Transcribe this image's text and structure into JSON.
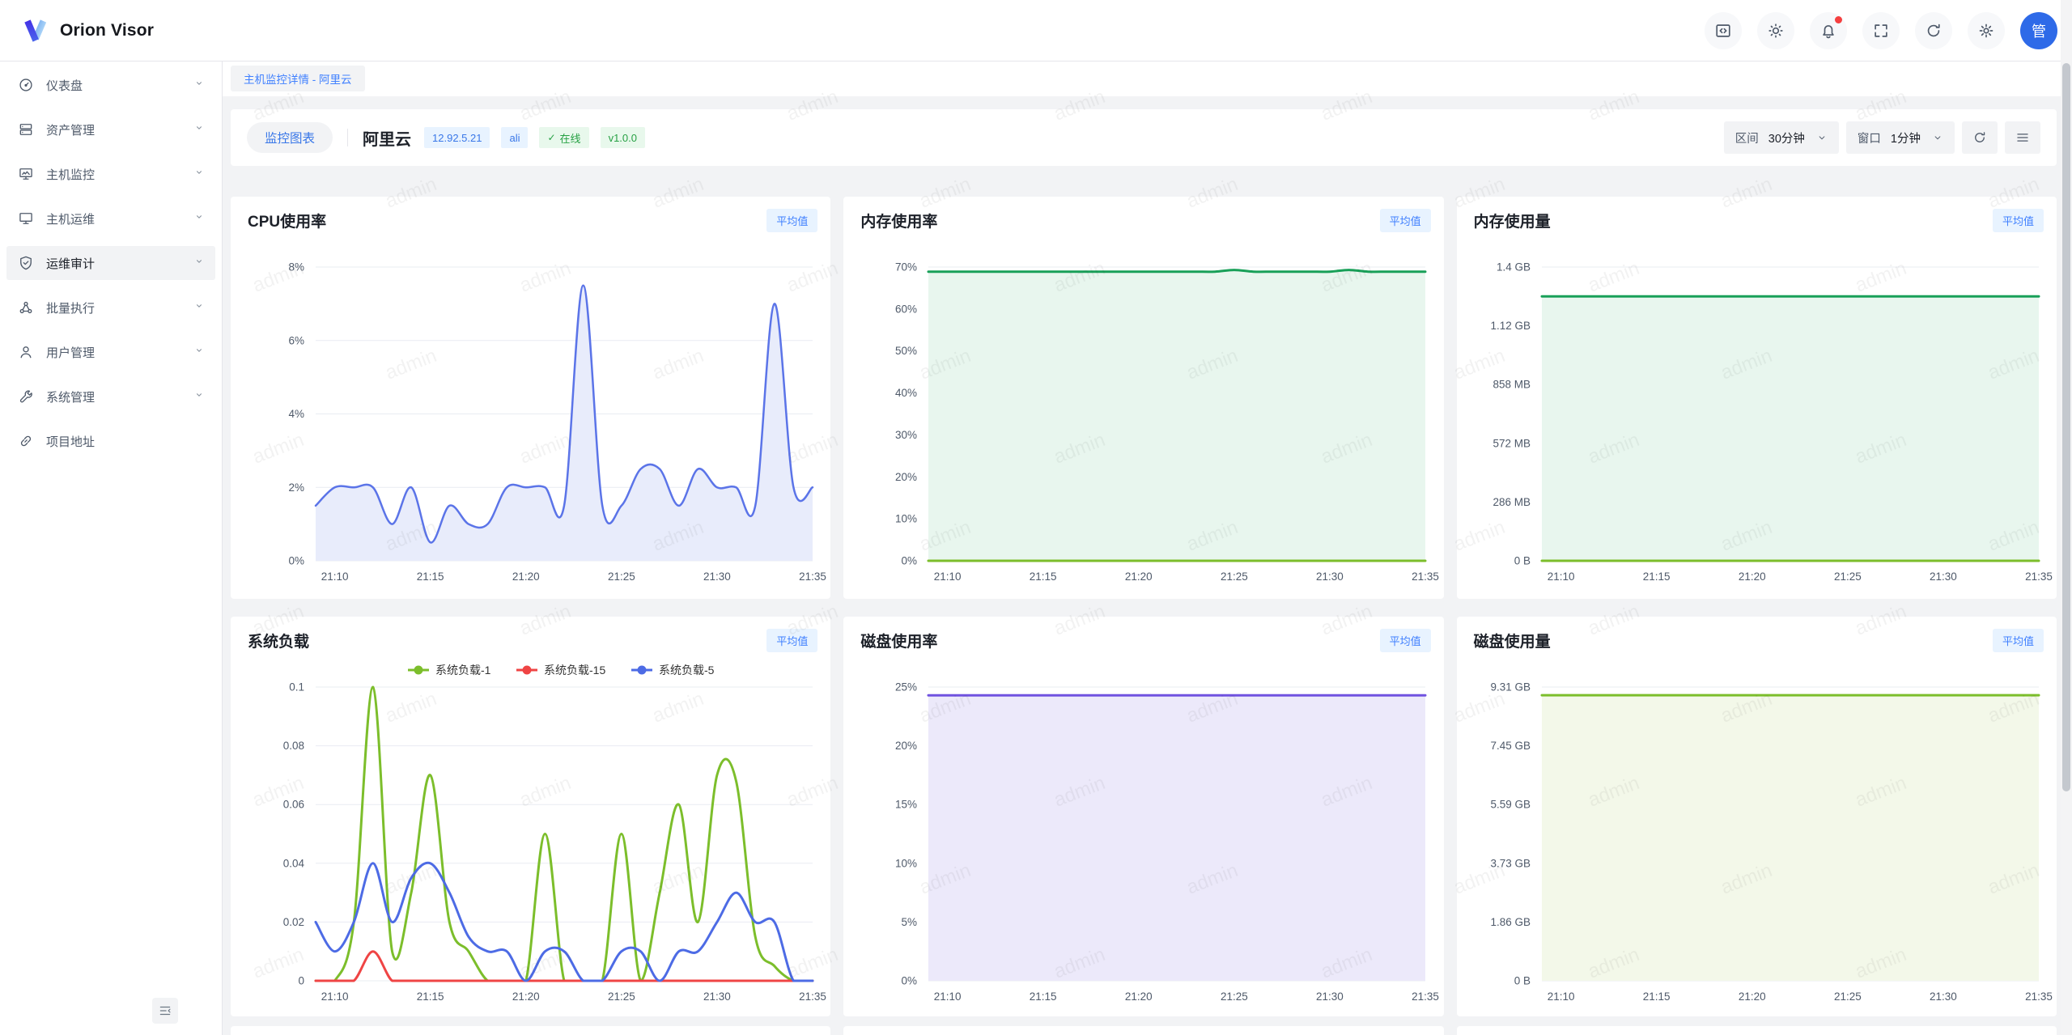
{
  "app": {
    "title": "Orion Visor"
  },
  "header": {
    "icons": [
      {
        "name": "code-icon"
      },
      {
        "name": "theme-sun-icon"
      },
      {
        "name": "notifications-bell-icon",
        "badge_dot": true
      },
      {
        "name": "fullscreen-icon"
      },
      {
        "name": "refresh-icon"
      },
      {
        "name": "settings-gear-icon"
      }
    ],
    "avatar_text": "管"
  },
  "tab_bar": {
    "tabs": [
      {
        "label": "主机监控详情 - 阿里云",
        "active": true
      }
    ]
  },
  "sidebar": {
    "items": [
      {
        "label": "仪表盘",
        "icon": "dashboard",
        "chevron": true,
        "active": false
      },
      {
        "label": "资产管理",
        "icon": "assets",
        "chevron": true,
        "active": false
      },
      {
        "label": "主机监控",
        "icon": "host-monitor",
        "chevron": true,
        "active": false
      },
      {
        "label": "主机运维",
        "icon": "host-ops",
        "chevron": true,
        "active": false
      },
      {
        "label": "运维审计",
        "icon": "audit",
        "chevron": true,
        "active": true
      },
      {
        "label": "批量执行",
        "icon": "batch",
        "chevron": true,
        "active": false
      },
      {
        "label": "用户管理",
        "icon": "users",
        "chevron": true,
        "active": false
      },
      {
        "label": "系统管理",
        "icon": "system",
        "chevron": true,
        "active": false
      },
      {
        "label": "项目地址",
        "icon": "link",
        "chevron": false,
        "active": false
      }
    ]
  },
  "toolbar": {
    "chart_tab_label": "监控图表",
    "host_name": "阿里云",
    "tags": [
      {
        "text": "12.92.5.21",
        "color": "blue",
        "check": false
      },
      {
        "text": "ali",
        "color": "blue",
        "check": false
      },
      {
        "text": "在线",
        "color": "green",
        "check": true
      },
      {
        "text": "v1.0.0",
        "color": "green",
        "check": false
      }
    ],
    "interval": {
      "label": "区间",
      "value": "30分钟"
    },
    "window": {
      "label": "窗口",
      "value": "1分钟"
    }
  },
  "watermark": {
    "text": "admin"
  },
  "colors": {
    "primary_blue": "#3977e8",
    "badge_bg": "#e8f3ff",
    "page_bg": "#f2f3f5",
    "card_bg": "#ffffff",
    "avatar_bg": "#2e6ae8",
    "online_green": "#27a144",
    "notification_dot": "#f53f3f"
  },
  "chart_data": [
    {
      "type": "area",
      "title": "CPU使用率",
      "badge": "平均值",
      "x": [
        "21:09",
        "21:10",
        "21:11",
        "21:12",
        "21:13",
        "21:14",
        "21:15",
        "21:16",
        "21:17",
        "21:18",
        "21:19",
        "21:20",
        "21:21",
        "21:22",
        "21:23",
        "21:24",
        "21:25",
        "21:26",
        "21:27",
        "21:28",
        "21:29",
        "21:30",
        "21:31",
        "21:32",
        "21:33",
        "21:34",
        "21:35"
      ],
      "x_tick_labels": [
        "21:10",
        "21:15",
        "21:20",
        "21:25",
        "21:30",
        "21:35"
      ],
      "x_tick_idx": [
        1,
        6,
        11,
        16,
        21,
        26
      ],
      "ymax": 8,
      "y_tick_labels": [
        "0%",
        "2%",
        "4%",
        "6%",
        "8%"
      ],
      "show_legend": false,
      "series": [
        {
          "name": "CPU使用率",
          "color": "#5b74e8",
          "fill": "#e8ecfb",
          "width": 2.5,
          "values": [
            1.5,
            2,
            2,
            2,
            1,
            2,
            0.5,
            1.5,
            1,
            1,
            2,
            2,
            2,
            1.5,
            7.5,
            1.5,
            1.5,
            2.5,
            2.5,
            1.5,
            2.5,
            2,
            2,
            1.5,
            7,
            2,
            2
          ]
        }
      ]
    },
    {
      "type": "area",
      "title": "内存使用率",
      "badge": "平均值",
      "x": [
        "21:09",
        "21:10",
        "21:11",
        "21:12",
        "21:13",
        "21:14",
        "21:15",
        "21:16",
        "21:17",
        "21:18",
        "21:19",
        "21:20",
        "21:21",
        "21:22",
        "21:23",
        "21:24",
        "21:25",
        "21:26",
        "21:27",
        "21:28",
        "21:29",
        "21:30",
        "21:31",
        "21:32",
        "21:33",
        "21:34",
        "21:35"
      ],
      "x_tick_labels": [
        "21:10",
        "21:15",
        "21:20",
        "21:25",
        "21:30",
        "21:35"
      ],
      "x_tick_idx": [
        1,
        6,
        11,
        16,
        21,
        26
      ],
      "ymax": 70,
      "y_tick_labels": [
        "0%",
        "10%",
        "20%",
        "30%",
        "40%",
        "50%",
        "60%",
        "70%"
      ],
      "show_legend": false,
      "series": [
        {
          "name": "内存使用率",
          "color": "#18a058",
          "fill": "#e8f6ee",
          "width": 3,
          "values": [
            68.9,
            68.9,
            68.9,
            68.9,
            68.9,
            68.9,
            68.9,
            68.9,
            68.9,
            68.9,
            68.9,
            68.9,
            68.9,
            68.9,
            68.9,
            68.9,
            69.3,
            68.9,
            68.9,
            68.9,
            68.9,
            68.9,
            69.3,
            68.9,
            68.9,
            68.9,
            68.9
          ]
        },
        {
          "name": "",
          "color": "#7cbe2b",
          "width": 3,
          "values": [
            0,
            0,
            0,
            0,
            0,
            0,
            0,
            0,
            0,
            0,
            0,
            0,
            0,
            0,
            0,
            0,
            0,
            0,
            0,
            0,
            0,
            0,
            0,
            0,
            0,
            0,
            0
          ]
        }
      ]
    },
    {
      "type": "area",
      "title": "内存使用量",
      "badge": "平均值",
      "unit": "GB",
      "x": [
        "21:09",
        "21:10",
        "21:11",
        "21:12",
        "21:13",
        "21:14",
        "21:15",
        "21:16",
        "21:17",
        "21:18",
        "21:19",
        "21:20",
        "21:21",
        "21:22",
        "21:23",
        "21:24",
        "21:25",
        "21:26",
        "21:27",
        "21:28",
        "21:29",
        "21:30",
        "21:31",
        "21:32",
        "21:33",
        "21:34",
        "21:35"
      ],
      "x_tick_labels": [
        "21:10",
        "21:15",
        "21:20",
        "21:25",
        "21:30",
        "21:35"
      ],
      "x_tick_idx": [
        1,
        6,
        11,
        16,
        21,
        26
      ],
      "ymax": 1.4,
      "y_tick_labels": [
        "0 B",
        "286 MB",
        "572 MB",
        "858 MB",
        "1.12 GB",
        "1.4 GB"
      ],
      "show_legend": false,
      "series": [
        {
          "name": "内存使用量",
          "color": "#18a058",
          "fill": "#e8f6ee",
          "width": 3,
          "values": [
            1.26,
            1.26,
            1.26,
            1.26,
            1.26,
            1.26,
            1.26,
            1.26,
            1.26,
            1.26,
            1.26,
            1.26,
            1.26,
            1.26,
            1.26,
            1.26,
            1.26,
            1.26,
            1.26,
            1.26,
            1.26,
            1.26,
            1.26,
            1.26,
            1.26,
            1.26,
            1.26
          ]
        },
        {
          "name": "",
          "color": "#7cbe2b",
          "width": 3,
          "values": [
            0,
            0,
            0,
            0,
            0,
            0,
            0,
            0,
            0,
            0,
            0,
            0,
            0,
            0,
            0,
            0,
            0,
            0,
            0,
            0,
            0,
            0,
            0,
            0,
            0,
            0,
            0
          ]
        }
      ]
    },
    {
      "type": "line",
      "title": "系统负载",
      "badge": "平均值",
      "x": [
        "21:09",
        "21:10",
        "21:11",
        "21:12",
        "21:13",
        "21:14",
        "21:15",
        "21:16",
        "21:17",
        "21:18",
        "21:19",
        "21:20",
        "21:21",
        "21:22",
        "21:23",
        "21:24",
        "21:25",
        "21:26",
        "21:27",
        "21:28",
        "21:29",
        "21:30",
        "21:31",
        "21:32",
        "21:33",
        "21:34",
        "21:35"
      ],
      "x_tick_labels": [
        "21:10",
        "21:15",
        "21:20",
        "21:25",
        "21:30",
        "21:35"
      ],
      "x_tick_idx": [
        1,
        6,
        11,
        16,
        21,
        26
      ],
      "ymax": 0.1,
      "y_tick_labels": [
        "0",
        "0.02",
        "0.04",
        "0.06",
        "0.08",
        "0.1"
      ],
      "show_legend": true,
      "series": [
        {
          "name": "系统负载-1",
          "color": "#7cbe2b",
          "width": 3,
          "values": [
            0,
            0,
            0.02,
            0.1,
            0.01,
            0.03,
            0.07,
            0.02,
            0.01,
            0,
            0,
            0,
            0.05,
            0,
            0,
            0,
            0.05,
            0,
            0.03,
            0.06,
            0.02,
            0.07,
            0.068,
            0.015,
            0.005,
            0,
            0
          ]
        },
        {
          "name": "系统负载-15",
          "color": "#ef4444",
          "width": 3,
          "values": [
            0,
            0,
            0,
            0.01,
            0,
            0,
            0,
            0,
            0,
            0,
            0,
            0,
            0,
            0,
            0,
            0,
            0,
            0,
            0,
            0,
            0,
            0,
            0,
            0,
            0,
            0,
            0
          ]
        },
        {
          "name": "系统负载-5",
          "color": "#4d6be5",
          "width": 3,
          "values": [
            0.02,
            0.01,
            0.02,
            0.04,
            0.02,
            0.035,
            0.04,
            0.03,
            0.015,
            0.01,
            0.01,
            0,
            0.01,
            0.01,
            0,
            0,
            0.01,
            0.01,
            0,
            0.01,
            0.01,
            0.02,
            0.03,
            0.02,
            0.02,
            0,
            0
          ]
        }
      ]
    },
    {
      "type": "area",
      "title": "磁盘使用率",
      "badge": "平均值",
      "x": [
        "21:09",
        "21:10",
        "21:11",
        "21:12",
        "21:13",
        "21:14",
        "21:15",
        "21:16",
        "21:17",
        "21:18",
        "21:19",
        "21:20",
        "21:21",
        "21:22",
        "21:23",
        "21:24",
        "21:25",
        "21:26",
        "21:27",
        "21:28",
        "21:29",
        "21:30",
        "21:31",
        "21:32",
        "21:33",
        "21:34",
        "21:35"
      ],
      "x_tick_labels": [
        "21:10",
        "21:15",
        "21:20",
        "21:25",
        "21:30",
        "21:35"
      ],
      "x_tick_idx": [
        1,
        6,
        11,
        16,
        21,
        26
      ],
      "ymax": 25,
      "y_tick_labels": [
        "0%",
        "5%",
        "10%",
        "15%",
        "20%",
        "25%"
      ],
      "show_legend": false,
      "series": [
        {
          "name": "磁盘使用率",
          "color": "#7052e0",
          "fill": "#ece9fa",
          "width": 3,
          "values": [
            24.3,
            24.3,
            24.3,
            24.3,
            24.3,
            24.3,
            24.3,
            24.3,
            24.3,
            24.3,
            24.3,
            24.3,
            24.3,
            24.3,
            24.3,
            24.3,
            24.3,
            24.3,
            24.3,
            24.3,
            24.3,
            24.3,
            24.3,
            24.3,
            24.3,
            24.3,
            24.3
          ]
        }
      ]
    },
    {
      "type": "area",
      "title": "磁盘使用量",
      "badge": "平均值",
      "unit": "GB",
      "x": [
        "21:09",
        "21:10",
        "21:11",
        "21:12",
        "21:13",
        "21:14",
        "21:15",
        "21:16",
        "21:17",
        "21:18",
        "21:19",
        "21:20",
        "21:21",
        "21:22",
        "21:23",
        "21:24",
        "21:25",
        "21:26",
        "21:27",
        "21:28",
        "21:29",
        "21:30",
        "21:31",
        "21:32",
        "21:33",
        "21:34",
        "21:35"
      ],
      "x_tick_labels": [
        "21:10",
        "21:15",
        "21:20",
        "21:25",
        "21:30",
        "21:35"
      ],
      "x_tick_idx": [
        1,
        6,
        11,
        16,
        21,
        26
      ],
      "ymax": 9.31,
      "y_tick_labels": [
        "0 B",
        "1.86 GB",
        "3.73 GB",
        "5.59 GB",
        "7.45 GB",
        "9.31 GB"
      ],
      "show_legend": false,
      "series": [
        {
          "name": "磁盘使用量",
          "color": "#7cbe2b",
          "fill": "#f3f8e9",
          "width": 3,
          "values": [
            9.05,
            9.05,
            9.05,
            9.05,
            9.05,
            9.05,
            9.05,
            9.05,
            9.05,
            9.05,
            9.05,
            9.05,
            9.05,
            9.05,
            9.05,
            9.05,
            9.05,
            9.05,
            9.05,
            9.05,
            9.05,
            9.05,
            9.05,
            9.05,
            9.05,
            9.05,
            9.05
          ]
        }
      ]
    }
  ]
}
